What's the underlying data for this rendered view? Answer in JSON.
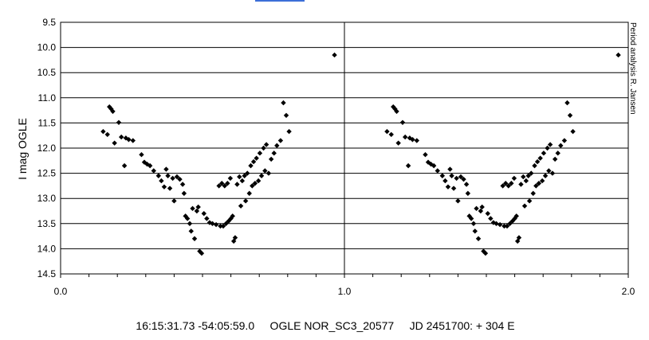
{
  "chart_data": {
    "type": "scatter",
    "ylabel": "I mag OGLE",
    "xlabel": "",
    "xlim": [
      0.0,
      2.0
    ],
    "ylim": [
      9.5,
      14.5
    ],
    "y_inverted": true,
    "x_ticks": [
      "0.0",
      "1.0",
      "2.0"
    ],
    "y_ticks": [
      "9.5",
      "10.0",
      "10.5",
      "11.0",
      "11.5",
      "12.0",
      "12.5",
      "13.0",
      "13.5",
      "14.0",
      "14.5"
    ],
    "grid": "horizontal",
    "marker": "diamond",
    "marker_color": "#000000",
    "caption": "16:15:31.73 -54:05:59.0     OGLE NOR_SC3_20577     JD 2451700: + 304 E",
    "side_note": "Period analysis R. Jansen",
    "phase_points": [
      [
        0.15,
        11.67
      ],
      [
        0.165,
        11.73
      ],
      [
        0.172,
        11.18
      ],
      [
        0.178,
        11.22
      ],
      [
        0.184,
        11.27
      ],
      [
        0.19,
        11.9
      ],
      [
        0.205,
        11.49
      ],
      [
        0.214,
        11.78
      ],
      [
        0.225,
        12.35
      ],
      [
        0.23,
        11.8
      ],
      [
        0.24,
        11.83
      ],
      [
        0.255,
        11.85
      ],
      [
        0.285,
        12.13
      ],
      [
        0.295,
        12.28
      ],
      [
        0.305,
        12.32
      ],
      [
        0.315,
        12.35
      ],
      [
        0.328,
        12.45
      ],
      [
        0.345,
        12.55
      ],
      [
        0.355,
        12.65
      ],
      [
        0.365,
        12.77
      ],
      [
        0.372,
        12.42
      ],
      [
        0.378,
        12.55
      ],
      [
        0.385,
        12.8
      ],
      [
        0.395,
        12.6
      ],
      [
        0.4,
        13.05
      ],
      [
        0.41,
        12.57
      ],
      [
        0.42,
        12.62
      ],
      [
        0.43,
        12.72
      ],
      [
        0.435,
        12.9
      ],
      [
        0.44,
        13.35
      ],
      [
        0.447,
        13.4
      ],
      [
        0.455,
        13.5
      ],
      [
        0.46,
        13.65
      ],
      [
        0.465,
        13.2
      ],
      [
        0.472,
        13.8
      ],
      [
        0.48,
        13.25
      ],
      [
        0.485,
        13.17
      ],
      [
        0.49,
        14.05
      ],
      [
        0.497,
        14.09
      ],
      [
        0.505,
        13.3
      ],
      [
        0.515,
        13.4
      ],
      [
        0.525,
        13.48
      ],
      [
        0.535,
        13.5
      ],
      [
        0.548,
        13.52
      ],
      [
        0.558,
        12.75
      ],
      [
        0.563,
        13.55
      ],
      [
        0.568,
        12.7
      ],
      [
        0.573,
        13.55
      ],
      [
        0.578,
        12.75
      ],
      [
        0.583,
        13.5
      ],
      [
        0.588,
        12.7
      ],
      [
        0.592,
        13.45
      ],
      [
        0.598,
        12.6
      ],
      [
        0.6,
        13.4
      ],
      [
        0.606,
        13.35
      ],
      [
        0.61,
        13.85
      ],
      [
        0.615,
        13.78
      ],
      [
        0.622,
        12.72
      ],
      [
        0.63,
        12.57
      ],
      [
        0.635,
        13.15
      ],
      [
        0.64,
        12.65
      ],
      [
        0.648,
        12.55
      ],
      [
        0.652,
        13.05
      ],
      [
        0.658,
        12.5
      ],
      [
        0.665,
        12.9
      ],
      [
        0.67,
        12.35
      ],
      [
        0.675,
        12.75
      ],
      [
        0.68,
        12.27
      ],
      [
        0.685,
        12.7
      ],
      [
        0.69,
        12.2
      ],
      [
        0.697,
        12.65
      ],
      [
        0.702,
        12.1
      ],
      [
        0.708,
        12.55
      ],
      [
        0.715,
        12.0
      ],
      [
        0.72,
        12.45
      ],
      [
        0.725,
        11.93
      ],
      [
        0.733,
        12.5
      ],
      [
        0.742,
        12.22
      ],
      [
        0.752,
        12.1
      ],
      [
        0.762,
        11.95
      ],
      [
        0.775,
        11.85
      ],
      [
        0.785,
        11.1
      ],
      [
        0.795,
        11.35
      ],
      [
        0.805,
        11.67
      ],
      [
        0.965,
        10.15
      ]
    ]
  }
}
